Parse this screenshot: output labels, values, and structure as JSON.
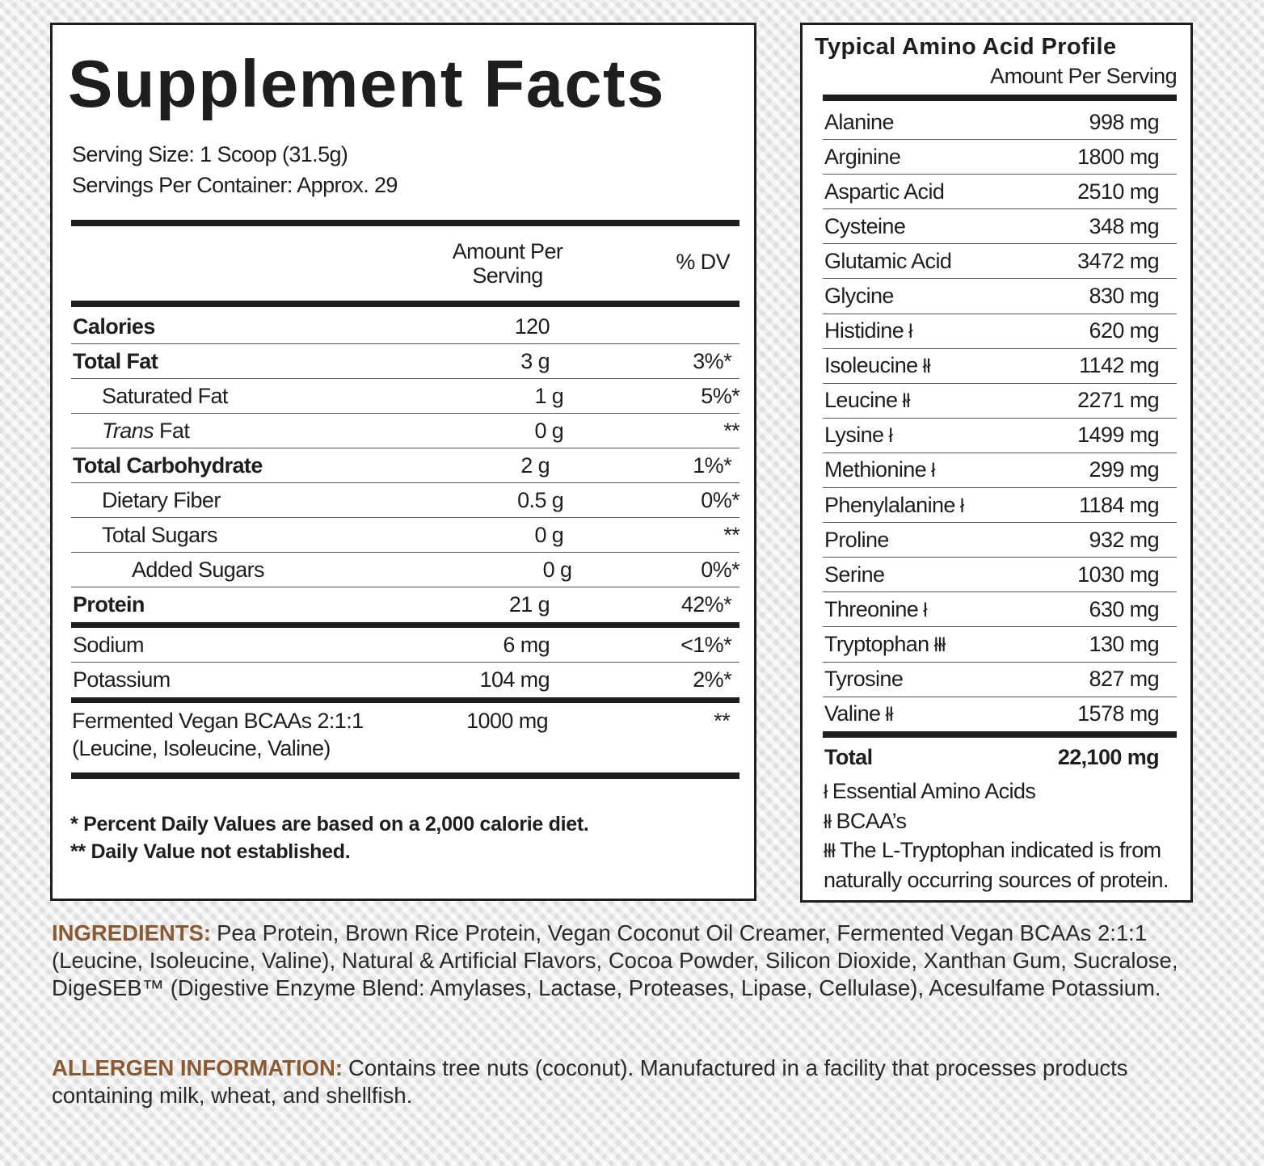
{
  "supplement_facts": {
    "title": "Supplement Facts",
    "serving_size": "Serving Size: 1 Scoop (31.5g)",
    "servings_per_container": "Servings Per Container: Approx. 29",
    "header": {
      "amount": "Amount Per Serving",
      "dv": "% DV"
    },
    "rows": [
      {
        "name": "Calories",
        "amount": "120"
      },
      {
        "name": "Total Fat",
        "amount": "3 g",
        "dv": "3%*"
      },
      {
        "name": "Saturated Fat",
        "amount": "1 g",
        "dv": "5%*"
      },
      {
        "name_italic": "Trans",
        "name": "Fat",
        "amount": "0 g",
        "dv": "**"
      },
      {
        "name": "Total Carbohydrate",
        "amount": "2 g",
        "dv": "1%*"
      },
      {
        "name": "Dietary Fiber",
        "amount": "0.5 g",
        "dv": "0%*"
      },
      {
        "name": "Total Sugars",
        "amount": "0 g",
        "dv": "**"
      },
      {
        "name": "Added Sugars",
        "amount": "0 g",
        "dv": "0%*"
      },
      {
        "name": "Protein",
        "amount": "21 g",
        "dv": "42%*"
      },
      {
        "name": "Sodium",
        "amount": "6 mg",
        "dv": "<1%*"
      },
      {
        "name": "Potassium",
        "amount": "104 mg",
        "dv": "2%*"
      }
    ],
    "bcaa": {
      "name": "Fermented Vegan BCAAs 2:1:1",
      "sub": "(Leucine, Isoleucine, Valine)",
      "amount": "1000 mg",
      "dv": "**"
    },
    "footnotes": [
      "* Percent Daily Values are based on a 2,000 calorie diet.",
      "** Daily Value not established."
    ]
  },
  "amino_profile": {
    "title": "Typical Amino Acid Profile",
    "subtitle": "Amount Per Serving",
    "rows": [
      {
        "name": "Alanine",
        "amount": "998 mg"
      },
      {
        "name": "Arginine",
        "amount": "1800 mg"
      },
      {
        "name": "Aspartic Acid",
        "amount": "2510 mg"
      },
      {
        "name": "Cysteine",
        "amount": "348 mg"
      },
      {
        "name": "Glutamic Acid",
        "amount": "3472 mg"
      },
      {
        "name": "Glycine",
        "amount": "830 mg"
      },
      {
        "name": "Histidine",
        "mark": "ł",
        "amount": "620 mg"
      },
      {
        "name": "Isoleucine",
        "mark": "łł",
        "amount": "1142 mg"
      },
      {
        "name": "Leucine",
        "mark": "łł",
        "amount": "2271 mg"
      },
      {
        "name": "Lysine",
        "mark": "ł",
        "amount": "1499 mg"
      },
      {
        "name": "Methionine",
        "mark": "ł",
        "amount": "299 mg"
      },
      {
        "name": "Phenylalanine",
        "mark": "ł",
        "amount": "1184 mg"
      },
      {
        "name": "Proline",
        "amount": "932 mg"
      },
      {
        "name": "Serine",
        "amount": "1030 mg"
      },
      {
        "name": "Threonine",
        "mark": "ł",
        "amount": "630 mg"
      },
      {
        "name": "Tryptophan",
        "mark": "łłł",
        "amount": "130 mg"
      },
      {
        "name": "Tyrosine",
        "amount": "827 mg"
      },
      {
        "name": "Valine",
        "mark": "łł",
        "amount": "1578 mg"
      }
    ],
    "total": {
      "name": "Total",
      "amount": "22,100 mg"
    },
    "legend": [
      {
        "mark": "ł",
        "text": "Essential Amino Acids"
      },
      {
        "mark": "łł",
        "text": "BCAA’s"
      },
      {
        "mark": "łłł",
        "text": "The L-Tryptophan indicated is from naturally occurring sources of protein."
      }
    ]
  },
  "ingredients": {
    "label": "INGREDIENTS:",
    "text": "Pea Protein, Brown Rice Protein, Vegan Coconut Oil Creamer, Fermented Vegan BCAAs 2:1:1 (Leucine, Isoleucine, Valine), Natural & Artificial Flavors, Cocoa Powder, Silicon Dioxide, Xanthan Gum, Sucralose, DigeSEB™ (Digestive Enzyme Blend: Amylases, Lactase, Proteases, Lipase, Cellulase), Acesulfame Potassium."
  },
  "allergen": {
    "label": "ALLERGEN INFORMATION:",
    "text": "Contains tree nuts (coconut). Manufactured in a facility that processes products containing milk, wheat, and shellfish."
  }
}
